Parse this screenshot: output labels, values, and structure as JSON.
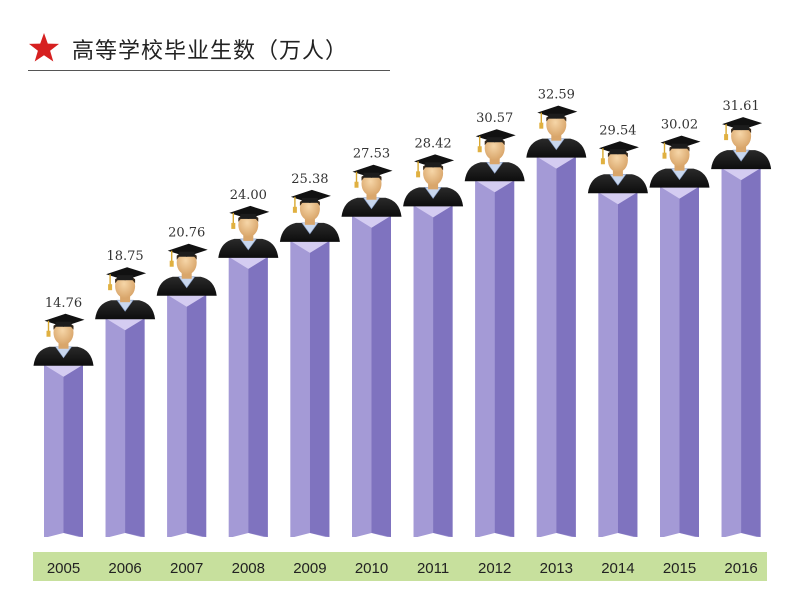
{
  "title": "高等学校毕业生数（万人）",
  "colors": {
    "star": "#d62020",
    "bar_front": "#a49ad6",
    "bar_side": "#7f73bf",
    "bar_top": "#d4ccf1",
    "axis_band": "#c7e09d"
  },
  "chart_data": {
    "type": "bar",
    "title": "高等学校毕业生数（万人）",
    "categories": [
      "2005",
      "2006",
      "2007",
      "2008",
      "2009",
      "2010",
      "2011",
      "2012",
      "2013",
      "2014",
      "2015",
      "2016"
    ],
    "values": [
      14.76,
      18.75,
      20.76,
      24.0,
      25.38,
      27.53,
      28.42,
      30.57,
      32.59,
      29.54,
      30.02,
      31.61
    ],
    "value_labels": [
      "14.76",
      "18.75",
      "20.76",
      "24.00",
      "25.38",
      "27.53",
      "28.42",
      "30.57",
      "32.59",
      "29.54",
      "30.02",
      "31.61"
    ],
    "xlabel": "",
    "ylabel": "",
    "ylim": [
      0,
      35
    ],
    "grid": false,
    "legend": "none",
    "decoration": "graduate-icon"
  }
}
